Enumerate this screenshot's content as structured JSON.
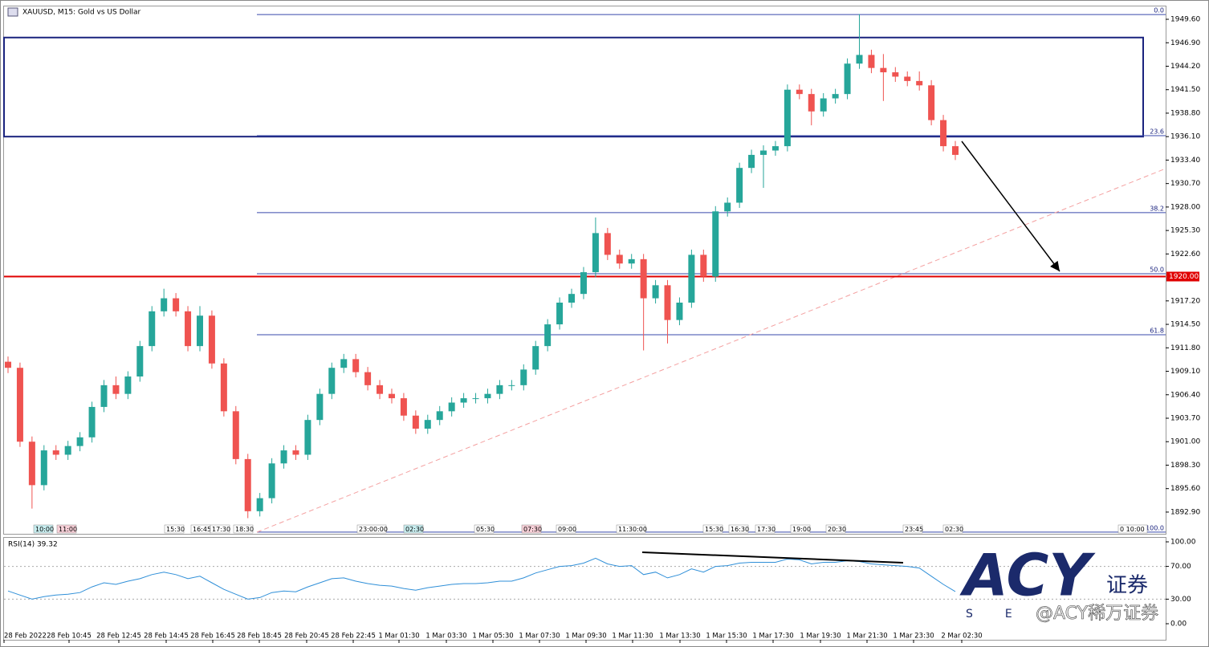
{
  "chart_data": [
    {
      "type": "candlestick",
      "title": "XAUUSD, M15:  Gold vs US Dollar",
      "up_color": "#26a69a",
      "down_color": "#ef5350",
      "ylim": [
        1890.4,
        1951.08
      ],
      "yticks": [
        {
          "value": 1949.6,
          "label": "1949.60"
        },
        {
          "value": 1946.9,
          "label": "1946.90"
        },
        {
          "value": 1944.2,
          "label": "1944.20"
        },
        {
          "value": 1941.5,
          "label": "1941.50"
        },
        {
          "value": 1938.8,
          "label": "1938.80"
        },
        {
          "value": 1936.1,
          "label": "1936.10"
        },
        {
          "value": 1933.4,
          "label": "1933.40"
        },
        {
          "value": 1930.7,
          "label": "1930.70"
        },
        {
          "value": 1928,
          "label": "1928.00"
        },
        {
          "value": 1925.3,
          "label": "1925.30"
        },
        {
          "value": 1922.6,
          "label": "1922.60"
        },
        {
          "value": 1917.2,
          "label": "1917.20"
        },
        {
          "value": 1914.5,
          "label": "1914.50"
        },
        {
          "value": 1911.8,
          "label": "1911.80"
        },
        {
          "value": 1909.1,
          "label": "1909.10"
        },
        {
          "value": 1906.4,
          "label": "1906.40"
        },
        {
          "value": 1903.7,
          "label": "1903.70"
        },
        {
          "value": 1901,
          "label": "1901.00"
        },
        {
          "value": 1898.3,
          "label": "1898.30"
        },
        {
          "value": 1895.6,
          "label": "1895.60"
        },
        {
          "value": 1892.9,
          "label": "1892.90"
        }
      ],
      "hline": {
        "value": 1920,
        "label": "1920.00",
        "color": "#e00000"
      },
      "zone": [
        1936.1,
        1947.5
      ],
      "fib_levels": [
        {
          "level": "0.0",
          "price": 1950.15
        },
        {
          "level": "23.6",
          "price": 1936.21
        },
        {
          "level": "38.2",
          "price": 1927.35
        },
        {
          "level": "50.0",
          "price": 1920.33
        },
        {
          "level": "61.8",
          "price": 1913.31
        },
        {
          "level": "100.0",
          "price": 1890.6
        }
      ],
      "candles": [
        [
          1910.2,
          1910.8,
          1908.9,
          1909.5
        ],
        [
          1909.5,
          1910.1,
          1900.4,
          1901
        ],
        [
          1901,
          1901.6,
          1893.3,
          1896
        ],
        [
          1896,
          1900.6,
          1895.4,
          1900
        ],
        [
          1900,
          1900.6,
          1898.9,
          1899.5
        ],
        [
          1899.5,
          1901.1,
          1898.9,
          1900.5
        ],
        [
          1900.5,
          1902.1,
          1899.9,
          1901.5
        ],
        [
          1901.5,
          1905.6,
          1900.9,
          1905
        ],
        [
          1905,
          1908.1,
          1904.4,
          1907.5
        ],
        [
          1907.5,
          1908.5,
          1905.9,
          1906.5
        ],
        [
          1906.5,
          1909.1,
          1905.9,
          1908.5
        ],
        [
          1908.5,
          1912.6,
          1907.9,
          1912
        ],
        [
          1912,
          1916.6,
          1911.4,
          1916
        ],
        [
          1916,
          1918.6,
          1915.4,
          1917.5
        ],
        [
          1917.5,
          1918.1,
          1915.4,
          1916
        ],
        [
          1916,
          1916.6,
          1911.4,
          1912
        ],
        [
          1912,
          1916.6,
          1911.4,
          1915.5
        ],
        [
          1915.5,
          1916.1,
          1909.4,
          1910
        ],
        [
          1910,
          1910.6,
          1903.9,
          1904.5
        ],
        [
          1904.5,
          1905.1,
          1898.4,
          1899
        ],
        [
          1899,
          1899.6,
          1892.2,
          1893
        ],
        [
          1893,
          1895.1,
          1892.4,
          1894.5
        ],
        [
          1894.5,
          1899.1,
          1893.9,
          1898.5
        ],
        [
          1898.5,
          1900.6,
          1897.9,
          1900
        ],
        [
          1900,
          1900.6,
          1898.9,
          1899.5
        ],
        [
          1899.5,
          1904.1,
          1898.9,
          1903.5
        ],
        [
          1903.5,
          1907.1,
          1902.9,
          1906.5
        ],
        [
          1906.5,
          1910.1,
          1905.9,
          1909.5
        ],
        [
          1909.5,
          1911.1,
          1908.9,
          1910.5
        ],
        [
          1910.5,
          1911.1,
          1908.4,
          1909
        ],
        [
          1909,
          1909.6,
          1906.9,
          1907.5
        ],
        [
          1907.5,
          1908.1,
          1905.9,
          1906.5
        ],
        [
          1906.5,
          1907.1,
          1905.4,
          1906
        ],
        [
          1906,
          1906.6,
          1903.4,
          1904
        ],
        [
          1904,
          1904.6,
          1901.9,
          1902.5
        ],
        [
          1902.5,
          1904.1,
          1901.9,
          1903.5
        ],
        [
          1903.5,
          1905.1,
          1902.9,
          1904.5
        ],
        [
          1904.5,
          1906.1,
          1903.9,
          1905.5
        ],
        [
          1905.5,
          1906.6,
          1904.9,
          1906
        ],
        [
          1906,
          1906.6,
          1905.4,
          1906
        ],
        [
          1906,
          1907.1,
          1905.4,
          1906.5
        ],
        [
          1906.5,
          1908.1,
          1905.9,
          1907.5
        ],
        [
          1907.5,
          1908.1,
          1906.9,
          1907.5
        ],
        [
          1907.5,
          1909.9,
          1906.9,
          1909.3
        ],
        [
          1909.3,
          1912.6,
          1908.7,
          1912
        ],
        [
          1912,
          1915.1,
          1911.4,
          1914.5
        ],
        [
          1914.5,
          1917.6,
          1913.9,
          1917
        ],
        [
          1917,
          1918.6,
          1916.4,
          1918
        ],
        [
          1918,
          1921.1,
          1917.4,
          1920.5
        ],
        [
          1920.5,
          1926.8,
          1919.9,
          1925
        ],
        [
          1925,
          1925.6,
          1921.9,
          1922.5
        ],
        [
          1922.5,
          1923.1,
          1920.9,
          1921.5
        ],
        [
          1921.5,
          1922.6,
          1920.9,
          1922
        ],
        [
          1922,
          1922.6,
          1911.5,
          1917.5
        ],
        [
          1917.5,
          1919.6,
          1916.9,
          1919
        ],
        [
          1919,
          1919.6,
          1912.3,
          1915
        ],
        [
          1915,
          1917.6,
          1914.4,
          1917
        ],
        [
          1917,
          1923.1,
          1916.4,
          1922.5
        ],
        [
          1922.5,
          1923.1,
          1919.4,
          1920
        ],
        [
          1920,
          1928.1,
          1919.4,
          1927.5
        ],
        [
          1927.5,
          1929.1,
          1926.9,
          1928.5
        ],
        [
          1928.5,
          1933.1,
          1927.9,
          1932.5
        ],
        [
          1932.5,
          1934.6,
          1931.9,
          1934
        ],
        [
          1934,
          1935.1,
          1930.2,
          1934.5
        ],
        [
          1934.5,
          1935.6,
          1933.9,
          1935
        ],
        [
          1935,
          1942.1,
          1934.4,
          1941.5
        ],
        [
          1941.5,
          1942.1,
          1940.4,
          1941
        ],
        [
          1941,
          1941.6,
          1937.4,
          1939
        ],
        [
          1939,
          1941.1,
          1938.4,
          1940.5
        ],
        [
          1940.5,
          1941.6,
          1939.9,
          1941
        ],
        [
          1941,
          1945.1,
          1940.4,
          1944.5
        ],
        [
          1944.5,
          1950.2,
          1943.9,
          1945.5
        ],
        [
          1945.5,
          1946.1,
          1943.4,
          1944
        ],
        [
          1944,
          1945.6,
          1940.2,
          1943.5
        ],
        [
          1943.5,
          1944.1,
          1942.4,
          1943
        ],
        [
          1943,
          1943.6,
          1941.9,
          1942.5
        ],
        [
          1942.5,
          1943.6,
          1941.4,
          1942
        ],
        [
          1942,
          1942.6,
          1937.4,
          1938
        ],
        [
          1938,
          1938.6,
          1934.4,
          1935
        ],
        [
          1935,
          1935.6,
          1933.4,
          1934
        ]
      ],
      "session_labels": [
        "10:00",
        "11:00",
        "15:30",
        "16:45",
        "17:30",
        "18:30",
        "23:00:00",
        "02:30",
        "05:30",
        "07:30",
        "09:00",
        "11:30:00",
        "15:30",
        "16:30",
        "17:30",
        "19:00",
        "20:30",
        "23:45",
        "02:30",
        "0 10:00"
      ],
      "time_labels": [
        "28 Feb 2022",
        "28 Feb 10:45",
        "28 Feb 12:45",
        "28 Feb 14:45",
        "28 Feb 16:45",
        "28 Feb 18:45",
        "28 Feb 20:45",
        "28 Feb 22:45",
        "1 Mar 01:30",
        "1 Mar 03:30",
        "1 Mar 05:30",
        "1 Mar 07:30",
        "1 Mar 09:30",
        "1 Mar 11:30",
        "1 Mar 13:30",
        "1 Mar 15:30",
        "1 Mar 17:30",
        "1 Mar 19:30",
        "1 Mar 21:30",
        "1 Mar 23:30",
        "2 Mar 02:30"
      ]
    },
    {
      "type": "line",
      "title": "RSI(14) 39.32",
      "color": "#2f8fd8",
      "ylim": [
        0,
        100
      ],
      "yticks": [
        {
          "value": 100,
          "label": "100.00"
        },
        {
          "value": 70,
          "label": "70.00"
        },
        {
          "value": 30,
          "label": "30.00"
        },
        {
          "value": 0,
          "label": "0.00"
        }
      ],
      "values": [
        40,
        35,
        30,
        33,
        35,
        36,
        38,
        45,
        50,
        48,
        52,
        55,
        60,
        63,
        60,
        55,
        58,
        50,
        42,
        36,
        30,
        32,
        38,
        40,
        39,
        45,
        50,
        55,
        56,
        52,
        49,
        47,
        46,
        43,
        41,
        44,
        46,
        48,
        49,
        49,
        50,
        52,
        52,
        56,
        62,
        66,
        70,
        71,
        74,
        80,
        73,
        70,
        71,
        60,
        63,
        56,
        60,
        67,
        63,
        70,
        71,
        74,
        75,
        75,
        75,
        79,
        78,
        73,
        75,
        75,
        77,
        76,
        73,
        72,
        71,
        70,
        68,
        58,
        48,
        39.32
      ]
    }
  ],
  "logo": {
    "brand": "ACY",
    "cn": "证券",
    "sub": "SE",
    "watermark": "@ACY稀万证券"
  }
}
